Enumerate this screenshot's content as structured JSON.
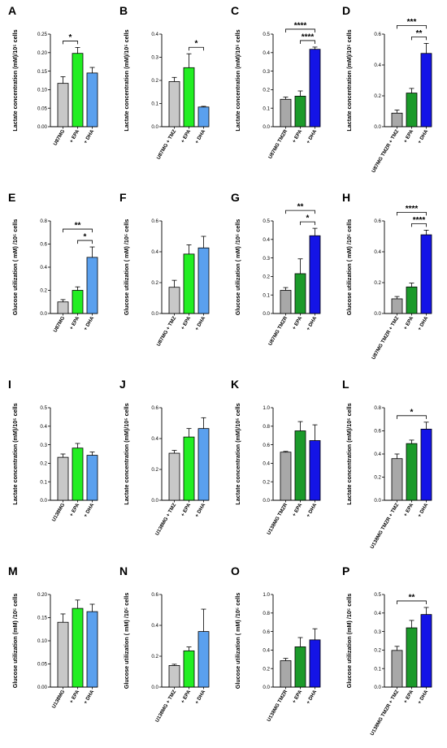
{
  "colors": {
    "gray": "#c8c8c8",
    "green_light": "#22ee22",
    "blue_light": "#5aa0ee",
    "gray_dark": "#a8a8a8",
    "green_dark": "#1b9a2a",
    "blue_dark": "#1414e6"
  },
  "chart_data": [
    {
      "panel": "A",
      "type": "bar",
      "ylabel": "Lactate concentration (mM)/10⁵ cells",
      "ylim": [
        0,
        0.25
      ],
      "yticks": [
        "0.00",
        "0.05",
        "0.10",
        "0.15",
        "0.20",
        "0.25"
      ],
      "categories": [
        "U87MG",
        "+ EPA",
        "+ DHA"
      ],
      "values": [
        0.117,
        0.198,
        0.145
      ],
      "errors": [
        0.018,
        0.016,
        0.015
      ],
      "colors": [
        "#c8c8c8",
        "#22ee22",
        "#5aa0ee"
      ],
      "significance": [
        {
          "from": 0,
          "to": 1,
          "label": "*"
        }
      ]
    },
    {
      "panel": "B",
      "type": "bar",
      "ylabel": "Lactate concentration (mM)/10⁵ cells",
      "ylim": [
        0,
        0.4
      ],
      "yticks": [
        "0.0",
        "0.1",
        "0.2",
        "0.3",
        "0.4"
      ],
      "categories": [
        "U87MG + TMZ",
        "+ EPA",
        "+ DHA"
      ],
      "values": [
        0.195,
        0.255,
        0.085
      ],
      "errors": [
        0.018,
        0.06,
        0.003
      ],
      "colors": [
        "#c8c8c8",
        "#22ee22",
        "#5aa0ee"
      ],
      "significance": [
        {
          "from": 1,
          "to": 2,
          "label": "*"
        }
      ]
    },
    {
      "panel": "C",
      "type": "bar",
      "ylabel": "Lactate concentration (mM)/10⁵ cells",
      "ylim": [
        0,
        0.5
      ],
      "yticks": [
        "0.0",
        "0.1",
        "0.2",
        "0.3",
        "0.4",
        "0.5"
      ],
      "categories": [
        "U87MG TMZR",
        "+ EPA",
        "+ DHA"
      ],
      "values": [
        0.148,
        0.165,
        0.418
      ],
      "errors": [
        0.012,
        0.028,
        0.012
      ],
      "colors": [
        "#a8a8a8",
        "#1b9a2a",
        "#1414e6"
      ],
      "significance": [
        {
          "from": 0,
          "to": 2,
          "label": "****"
        },
        {
          "from": 1,
          "to": 2,
          "label": "****"
        }
      ]
    },
    {
      "panel": "D",
      "type": "bar",
      "ylabel": "Lactate concentration (mM)/10⁵ cells",
      "ylim": [
        0,
        0.6
      ],
      "yticks": [
        "0.0",
        "0.2",
        "0.4",
        "0.6"
      ],
      "categories": [
        "U87MG TMZR + TMZ",
        "+ EPA",
        "+ DHA"
      ],
      "values": [
        0.088,
        0.218,
        0.475
      ],
      "errors": [
        0.02,
        0.03,
        0.065
      ],
      "colors": [
        "#a8a8a8",
        "#1b9a2a",
        "#1414e6"
      ],
      "significance": [
        {
          "from": 0,
          "to": 2,
          "label": "***"
        },
        {
          "from": 1,
          "to": 2,
          "label": "**"
        }
      ]
    },
    {
      "panel": "E",
      "type": "bar",
      "ylabel": "Glucose utilization ( mM) /10⁵ cells",
      "ylim": [
        0,
        0.8
      ],
      "yticks": [
        "0.0",
        "0.2",
        "0.4",
        "0.6",
        "0.8"
      ],
      "categories": [
        "U87MG",
        "+ EPA",
        "+ DHA"
      ],
      "values": [
        0.1,
        0.2,
        0.485
      ],
      "errors": [
        0.02,
        0.03,
        0.09
      ],
      "colors": [
        "#c8c8c8",
        "#22ee22",
        "#5aa0ee"
      ],
      "significance": [
        {
          "from": 0,
          "to": 2,
          "label": "**"
        },
        {
          "from": 1,
          "to": 2,
          "label": "*"
        }
      ]
    },
    {
      "panel": "F",
      "type": "bar",
      "ylabel": "Glucose utilization ( mM) /10⁵ cells",
      "ylim": [
        0,
        0.6
      ],
      "yticks": [
        "0.0",
        "0.2",
        "0.4",
        "0.6"
      ],
      "categories": [
        "U87MG + TMZ",
        "+ EPA",
        "+ DHA"
      ],
      "values": [
        0.17,
        0.385,
        0.425
      ],
      "errors": [
        0.045,
        0.06,
        0.075
      ],
      "colors": [
        "#c8c8c8",
        "#22ee22",
        "#5aa0ee"
      ],
      "significance": []
    },
    {
      "panel": "G",
      "type": "bar",
      "ylabel": "Glucose utilization ( mM) /10⁵ cells",
      "ylim": [
        0,
        0.5
      ],
      "yticks": [
        "0.0",
        "0.1",
        "0.2",
        "0.3",
        "0.4",
        "0.5"
      ],
      "categories": [
        "U87MG TMZR",
        "+ EPA",
        "+ DHA"
      ],
      "values": [
        0.125,
        0.215,
        0.42
      ],
      "errors": [
        0.015,
        0.08,
        0.04
      ],
      "colors": [
        "#a8a8a8",
        "#1b9a2a",
        "#1414e6"
      ],
      "significance": [
        {
          "from": 0,
          "to": 2,
          "label": "**"
        },
        {
          "from": 1,
          "to": 2,
          "label": "*"
        }
      ]
    },
    {
      "panel": "H",
      "type": "bar",
      "ylabel": "Glucose utilization ( mM) /10⁵ cells",
      "ylim": [
        0,
        0.6
      ],
      "yticks": [
        "0.0",
        "0.2",
        "0.4",
        "0.6"
      ],
      "categories": [
        "U87MG TMZR + TMZ",
        "+ EPA",
        "+ DHA"
      ],
      "values": [
        0.095,
        0.172,
        0.51
      ],
      "errors": [
        0.015,
        0.025,
        0.03
      ],
      "colors": [
        "#a8a8a8",
        "#1b9a2a",
        "#1414e6"
      ],
      "significance": [
        {
          "from": 0,
          "to": 2,
          "label": "****"
        },
        {
          "from": 1,
          "to": 2,
          "label": "****"
        }
      ]
    },
    {
      "panel": "I",
      "type": "bar",
      "ylabel": "Lactate concentration (mM)/10⁵ cells",
      "ylim": [
        0,
        0.5
      ],
      "yticks": [
        "0.0",
        "0.1",
        "0.2",
        "0.3",
        "0.4",
        "0.5"
      ],
      "categories": [
        "U138MG",
        "+ EPA",
        "+ DHA"
      ],
      "values": [
        0.232,
        0.282,
        0.243
      ],
      "errors": [
        0.018,
        0.025,
        0.018
      ],
      "colors": [
        "#c8c8c8",
        "#22ee22",
        "#5aa0ee"
      ],
      "significance": []
    },
    {
      "panel": "J",
      "type": "bar",
      "ylabel": "Lactate concentration (mM)/10⁵ cells",
      "ylim": [
        0,
        0.6
      ],
      "yticks": [
        "0.0",
        "0.2",
        "0.4",
        "0.6"
      ],
      "categories": [
        "U138MG + TMZ",
        "+ EPA",
        "+ DHA"
      ],
      "values": [
        0.305,
        0.41,
        0.465
      ],
      "errors": [
        0.018,
        0.055,
        0.07
      ],
      "colors": [
        "#c8c8c8",
        "#22ee22",
        "#5aa0ee"
      ],
      "significance": []
    },
    {
      "panel": "K",
      "type": "bar",
      "ylabel": "Lactate concentration (mM)/10⁵ cells",
      "ylim": [
        0,
        1.0
      ],
      "yticks": [
        "0.0",
        "0.2",
        "0.4",
        "0.6",
        "0.8",
        "1.0"
      ],
      "categories": [
        "U138MG TMZR",
        "+ EPA",
        "+ DHA"
      ],
      "values": [
        0.52,
        0.75,
        0.645
      ],
      "errors": [
        0.008,
        0.1,
        0.17
      ],
      "colors": [
        "#a8a8a8",
        "#1b9a2a",
        "#1414e6"
      ],
      "significance": []
    },
    {
      "panel": "L",
      "type": "bar",
      "ylabel": "Lactate concentration (mM)/10⁵ cells",
      "ylim": [
        0,
        0.8
      ],
      "yticks": [
        "0.0",
        "0.2",
        "0.4",
        "0.6",
        "0.8"
      ],
      "categories": [
        "U138MG TMZR + TMZ",
        "+ EPA",
        "+ DHA"
      ],
      "values": [
        0.36,
        0.49,
        0.615
      ],
      "errors": [
        0.04,
        0.03,
        0.06
      ],
      "colors": [
        "#a8a8a8",
        "#1b9a2a",
        "#1414e6"
      ],
      "significance": [
        {
          "from": 0,
          "to": 2,
          "label": "*"
        }
      ]
    },
    {
      "panel": "M",
      "type": "bar",
      "ylabel": "Glucose utilization (mM) /10⁵ cells",
      "ylim": [
        0,
        0.2
      ],
      "yticks": [
        "0.00",
        "0.05",
        "0.10",
        "0.15",
        "0.20"
      ],
      "categories": [
        "U138MG",
        "+ EPA",
        "+ DHA"
      ],
      "values": [
        0.14,
        0.17,
        0.163
      ],
      "errors": [
        0.018,
        0.018,
        0.016
      ],
      "colors": [
        "#c8c8c8",
        "#22ee22",
        "#5aa0ee"
      ],
      "significance": []
    },
    {
      "panel": "N",
      "type": "bar",
      "ylabel": "Glucose utilization ( mM) /10⁵ cells",
      "ylim": [
        0,
        0.6
      ],
      "yticks": [
        "0.0",
        "0.2",
        "0.4",
        "0.6"
      ],
      "categories": [
        "U138MG + TMZ",
        "+ EPA",
        "+ DHA"
      ],
      "values": [
        0.14,
        0.235,
        0.36
      ],
      "errors": [
        0.008,
        0.025,
        0.145
      ],
      "colors": [
        "#c8c8c8",
        "#22ee22",
        "#5aa0ee"
      ],
      "significance": []
    },
    {
      "panel": "O",
      "type": "bar",
      "ylabel": "Glucose utilization ( mM) /10⁵ cells",
      "ylim": [
        0,
        1.0
      ],
      "yticks": [
        "0.0",
        "0.2",
        "0.4",
        "0.6",
        "0.8",
        "1.0"
      ],
      "categories": [
        "U138MG TMZR",
        "+ EPA",
        "+ DHA"
      ],
      "values": [
        0.285,
        0.435,
        0.51
      ],
      "errors": [
        0.025,
        0.1,
        0.12
      ],
      "colors": [
        "#a8a8a8",
        "#1b9a2a",
        "#1414e6"
      ],
      "significance": []
    },
    {
      "panel": "P",
      "type": "bar",
      "ylabel": "Glucose utilization (mM) /10⁵ cells",
      "ylim": [
        0,
        0.5
      ],
      "yticks": [
        "0.0",
        "0.1",
        "0.2",
        "0.3",
        "0.4",
        "0.5"
      ],
      "categories": [
        "U138MG TMZR + TMZ",
        "+ EPA",
        "+ DHA"
      ],
      "values": [
        0.198,
        0.32,
        0.392
      ],
      "errors": [
        0.022,
        0.04,
        0.038
      ],
      "colors": [
        "#a8a8a8",
        "#1b9a2a",
        "#1414e6"
      ],
      "significance": [
        {
          "from": 0,
          "to": 2,
          "label": "**"
        }
      ]
    }
  ]
}
